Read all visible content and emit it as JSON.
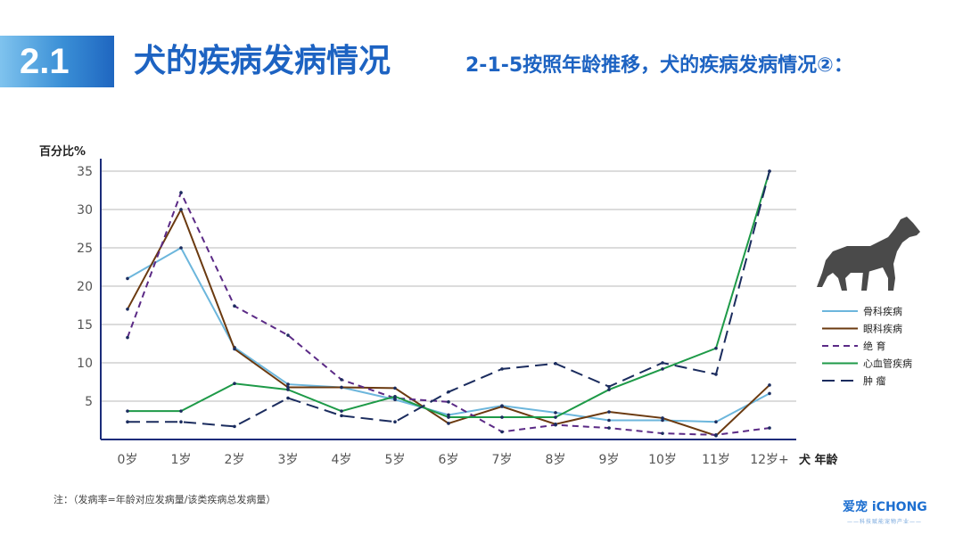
{
  "header": {
    "section_number": "2.1",
    "title": "犬的疾病发病情况",
    "subtitle": "2-1-5按照年龄推移，犬的疾病发病情况②："
  },
  "note": "注：（发病率=年龄对应发病量/该类疾病总发病量）",
  "brand": {
    "name": "爱宠 iCHONG",
    "tagline": "——科技赋能宠物产业——"
  },
  "chart_data": {
    "type": "line",
    "ylabel": "百分比%",
    "xlabel": "犬 年龄",
    "categories": [
      "0岁",
      "1岁",
      "2岁",
      "3岁",
      "4岁",
      "5岁",
      "6岁",
      "7岁",
      "8岁",
      "9岁",
      "10岁",
      "11岁",
      "12岁+"
    ],
    "yticks": [
      5,
      10,
      15,
      20,
      25,
      30,
      35
    ],
    "ylim": [
      0,
      35
    ],
    "grid": true,
    "legend_position": "right",
    "series": [
      {
        "name": "骨科疾病",
        "color": "#6cb6dc",
        "dash": "solid",
        "values": [
          21,
          25,
          12,
          7.2,
          6.8,
          5.2,
          3.2,
          4.4,
          3.5,
          2.5,
          2.5,
          2.3,
          6
        ]
      },
      {
        "name": "眼科疾病",
        "color": "#6b3a10",
        "dash": "solid",
        "values": [
          17,
          30,
          11.8,
          6.8,
          6.8,
          6.7,
          2.1,
          4.3,
          2,
          3.6,
          2.8,
          0.5,
          7.1
        ]
      },
      {
        "name": "绝 育",
        "color": "#5b2a86",
        "dash": "dashed",
        "values": [
          13.3,
          32.2,
          17.4,
          13.6,
          7.8,
          5.4,
          4.9,
          1,
          1.9,
          1.5,
          0.8,
          0.6,
          1.5
        ]
      },
      {
        "name": "心血管疾病",
        "color": "#1e9a48",
        "dash": "solid",
        "values": [
          3.7,
          3.7,
          7.3,
          6.5,
          3.7,
          5.6,
          2.9,
          2.9,
          2.9,
          6.5,
          9.2,
          11.9,
          35
        ]
      },
      {
        "name": "肿 瘤",
        "color": "#1b2c5e",
        "dash": "longdash",
        "values": [
          2.3,
          2.3,
          1.7,
          5.4,
          3.1,
          2.3,
          6.2,
          9.2,
          9.9,
          6.9,
          10,
          8.5,
          35
        ]
      }
    ]
  }
}
